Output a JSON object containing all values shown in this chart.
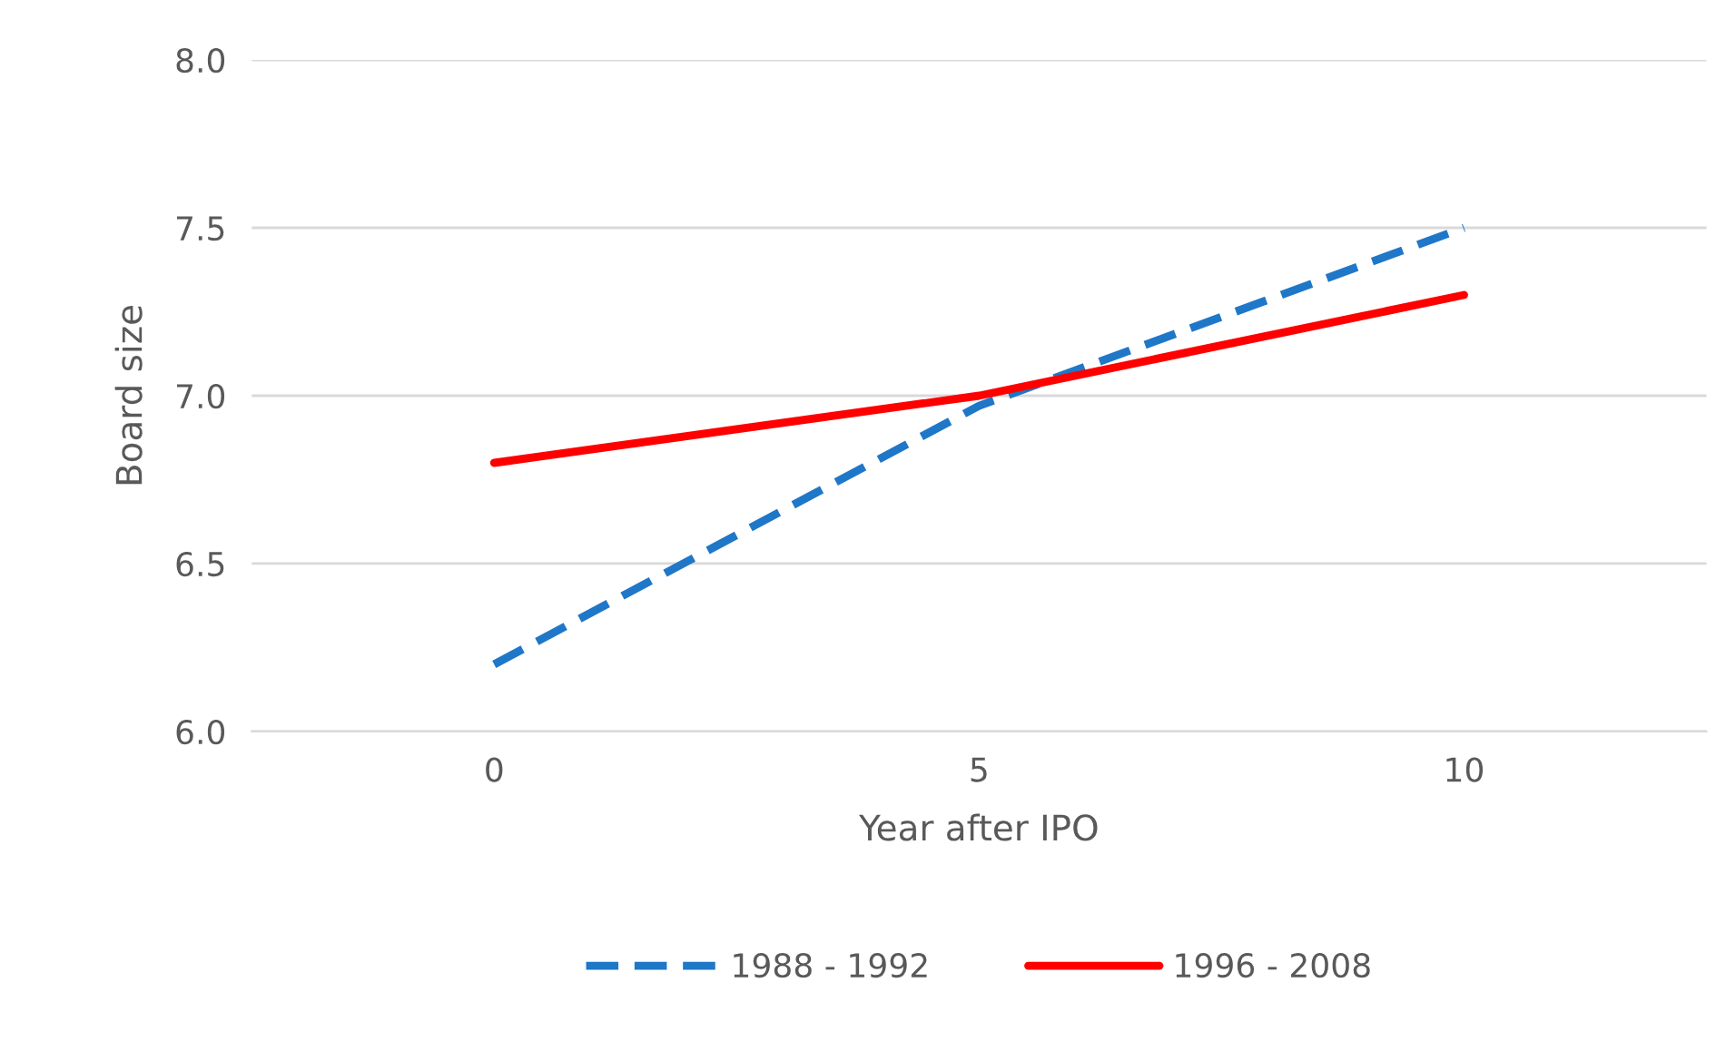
{
  "chart_data": {
    "type": "line",
    "xlabel": "Year after IPO",
    "ylabel": "Board size",
    "categories": [
      "0",
      "5",
      "10"
    ],
    "series": [
      {
        "name": "1988 - 1992",
        "color": "#1f77c8",
        "values": [
          6.2,
          6.97,
          7.5
        ],
        "line_style": "dashed"
      },
      {
        "name": "1996 - 2008",
        "color": "#ff0000",
        "values": [
          6.8,
          7.0,
          7.3
        ],
        "line_style": "solid"
      }
    ],
    "ylim": [
      6,
      8
    ],
    "yticks": [
      {
        "value": 6,
        "label": "6.0"
      },
      {
        "value": 6.5,
        "label": "6.5"
      },
      {
        "value": 7,
        "label": "7.0"
      },
      {
        "value": 7.5,
        "label": "7.5"
      },
      {
        "value": 8,
        "label": "8.0"
      }
    ],
    "grid": "y",
    "legend": "bottom",
    "marker": "none"
  }
}
